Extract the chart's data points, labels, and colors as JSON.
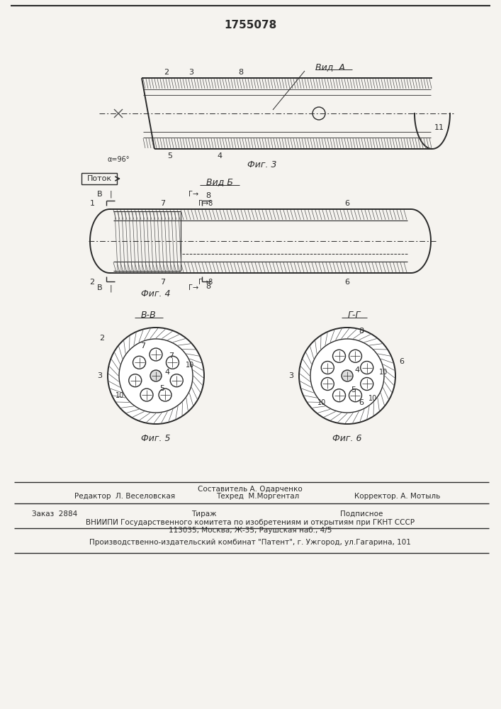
{
  "patent_number": "1755078",
  "bg_color": "#f5f3ef",
  "line_color": "#2a2a2a",
  "fig3_label": "Фиг. 3",
  "fig4_label": "Фиг. 4",
  "fig5_label": "Фиг. 5",
  "fig6_label": "Фиг. 6",
  "vid_a": "Вид. А",
  "vid_b": "Вид Б",
  "bb_label": "В-В",
  "gg_label": "Г-Г",
  "potok": "Поток",
  "alpha_label": "α=96°",
  "footer_sostavitel": "Составитель А. Одарченко",
  "footer_redaktor": "Редактор  Л. Веселовская",
  "footer_tehred": "Техред  М.Моргентал",
  "footer_korrektor": "Корректор. А. Мотыль",
  "footer_zakaz": "Заказ  2884",
  "footer_tirazh": "Тираж",
  "footer_podpisnoe": "Подписное",
  "footer_vniiipi": "ВНИИПИ Государственного комитета по изобретениям и открытиям при ГКНТ СССР",
  "footer_addr": "113035, Москва, Ж-35, Раушская наб., 4/5",
  "footer_kombinat": "Производственно-издательский комбинат \"Патент\", г. Ужгород, ул.Гагарина, 101"
}
